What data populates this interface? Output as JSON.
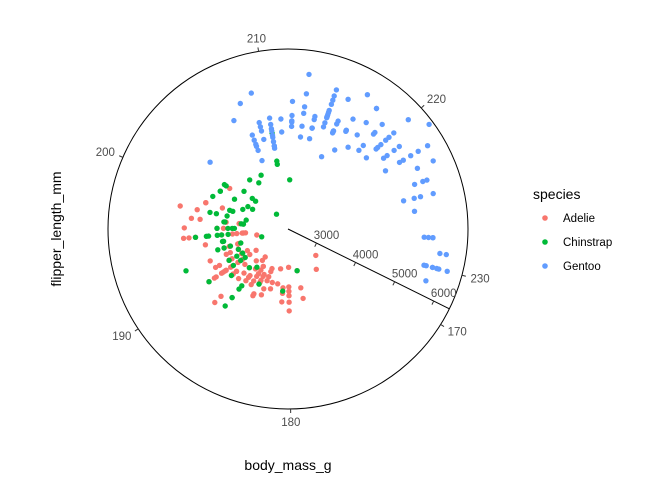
{
  "chart_data": {
    "type": "scatter",
    "coord": "polar",
    "x_variable": "flipper_length_mm",
    "y_variable": "body_mass_g",
    "xlabel": "body_mass_g",
    "ylabel": "flipper_length_mm",
    "theta_ticks": [
      170,
      180,
      190,
      200,
      210,
      220,
      230
    ],
    "r_ticks": [
      3000,
      4000,
      5000,
      6000
    ],
    "theta_range": [
      169,
      232
    ],
    "r_range": [
      2500,
      6400
    ],
    "grid": false,
    "legend_position": "right",
    "legend": {
      "title": "species",
      "entries": [
        {
          "label": "Adelie",
          "color": "#F8766D"
        },
        {
          "label": "Chinstrap",
          "color": "#00BA38"
        },
        {
          "label": "Gentoo",
          "color": "#619CFF"
        }
      ]
    },
    "series": [
      {
        "name": "Adelie",
        "color": "#F8766D",
        "points": [
          [
            181,
            3750
          ],
          [
            186,
            3800
          ],
          [
            195,
            3250
          ],
          [
            193,
            3450
          ],
          [
            190,
            3650
          ],
          [
            181,
            3625
          ],
          [
            195,
            4675
          ],
          [
            193,
            3475
          ],
          [
            190,
            4250
          ],
          [
            186,
            3300
          ],
          [
            180,
            3700
          ],
          [
            182,
            3200
          ],
          [
            191,
            3800
          ],
          [
            198,
            4400
          ],
          [
            185,
            3700
          ],
          [
            195,
            3450
          ],
          [
            197,
            4500
          ],
          [
            184,
            3325
          ],
          [
            194,
            4200
          ],
          [
            174,
            3400
          ],
          [
            180,
            3600
          ],
          [
            189,
            3800
          ],
          [
            185,
            3950
          ],
          [
            180,
            3800
          ],
          [
            187,
            3800
          ],
          [
            183,
            3550
          ],
          [
            187,
            3200
          ],
          [
            172,
            3150
          ],
          [
            180,
            3950
          ],
          [
            178,
            3250
          ],
          [
            178,
            3900
          ],
          [
            188,
            3300
          ],
          [
            184,
            3900
          ],
          [
            195,
            3325
          ],
          [
            180,
            4150
          ],
          [
            181,
            3950
          ],
          [
            182,
            3550
          ],
          [
            186,
            3300
          ],
          [
            188,
            4650
          ],
          [
            190,
            3150
          ],
          [
            196,
            3900
          ],
          [
            180,
            3150
          ],
          [
            186,
            3700
          ],
          [
            189,
            3550
          ],
          [
            190,
            3800
          ],
          [
            184,
            3750
          ],
          [
            195,
            4550
          ],
          [
            187,
            3700
          ],
          [
            192,
            3800
          ],
          [
            196,
            4650
          ],
          [
            193,
            3800
          ],
          [
            188,
            4450
          ],
          [
            197,
            3700
          ],
          [
            198,
            4800
          ],
          [
            178,
            3650
          ],
          [
            197,
            4300
          ],
          [
            195,
            3550
          ],
          [
            190,
            4050
          ],
          [
            195,
            4400
          ],
          [
            191,
            3475
          ],
          [
            184,
            3250
          ],
          [
            190,
            3650
          ],
          [
            185,
            4000
          ],
          [
            194,
            3000
          ],
          [
            190,
            3325
          ],
          [
            185,
            3650
          ],
          [
            192,
            4200
          ],
          [
            195,
            3800
          ],
          [
            185,
            3450
          ],
          [
            190,
            4100
          ],
          [
            199,
            4250
          ],
          [
            189,
            3900
          ],
          [
            188,
            3525
          ],
          [
            190,
            4300
          ],
          [
            195,
            3300
          ],
          [
            199,
            3850
          ],
          [
            187,
            3100
          ],
          [
            191,
            4150
          ],
          [
            189,
            3800
          ],
          [
            190,
            3850
          ],
          [
            188,
            3700
          ],
          [
            197,
            3400
          ],
          [
            190,
            4450
          ],
          [
            191,
            3325
          ],
          [
            186,
            3500
          ],
          [
            188,
            3875
          ],
          [
            191,
            3725
          ],
          [
            192,
            3700
          ],
          [
            186,
            3575
          ],
          [
            190,
            3975
          ],
          [
            185,
            3500
          ],
          [
            193,
            3675
          ],
          [
            187,
            3450
          ],
          [
            186,
            3400
          ],
          [
            199,
            4250
          ],
          [
            190,
            4000
          ],
          [
            191,
            3800
          ],
          [
            184,
            3450
          ],
          [
            183,
            3700
          ],
          [
            196,
            3750
          ],
          [
            184,
            3550
          ],
          [
            191,
            4050
          ],
          [
            185,
            3600
          ],
          [
            191,
            3450
          ],
          [
            193,
            3650
          ],
          [
            202,
            3900
          ],
          [
            189,
            3900
          ],
          [
            192,
            3500
          ],
          [
            187,
            3650
          ],
          [
            190,
            3525
          ]
        ]
      },
      {
        "name": "Chinstrap",
        "color": "#00BA38",
        "points": [
          [
            192,
            3500
          ],
          [
            196,
            3900
          ],
          [
            193,
            3650
          ],
          [
            188,
            3525
          ],
          [
            197,
            3725
          ],
          [
            198,
            3950
          ],
          [
            178,
            3250
          ],
          [
            197,
            3750
          ],
          [
            195,
            4150
          ],
          [
            198,
            3700
          ],
          [
            193,
            3800
          ],
          [
            194,
            3775
          ],
          [
            185,
            3700
          ],
          [
            201,
            4050
          ],
          [
            190,
            3575
          ],
          [
            201,
            4050
          ],
          [
            197,
            3300
          ],
          [
            181,
            3700
          ],
          [
            190,
            3450
          ],
          [
            195,
            4400
          ],
          [
            191,
            3600
          ],
          [
            187,
            3400
          ],
          [
            193,
            2900
          ],
          [
            195,
            3800
          ],
          [
            197,
            3300
          ],
          [
            200,
            4150
          ],
          [
            200,
            3400
          ],
          [
            191,
            3800
          ],
          [
            205,
            3700
          ],
          [
            187,
            4550
          ],
          [
            201,
            3200
          ],
          [
            187,
            4300
          ],
          [
            203,
            3350
          ],
          [
            195,
            4100
          ],
          [
            199,
            3600
          ],
          [
            195,
            3900
          ],
          [
            210,
            3850
          ],
          [
            192,
            4800
          ],
          [
            205,
            2700
          ],
          [
            210,
            4500
          ],
          [
            187,
            3950
          ],
          [
            196,
            3650
          ],
          [
            196,
            3550
          ],
          [
            196,
            3500
          ],
          [
            201,
            3675
          ],
          [
            190,
            4450
          ],
          [
            212,
            3400
          ],
          [
            187,
            4300
          ],
          [
            198,
            3250
          ],
          [
            199,
            3675
          ],
          [
            201,
            3325
          ],
          [
            193,
            3950
          ],
          [
            203,
            3600
          ],
          [
            187,
            4050
          ],
          [
            197,
            3350
          ],
          [
            191,
            3450
          ],
          [
            203,
            3250
          ],
          [
            202,
            4050
          ],
          [
            194,
            3800
          ],
          [
            206,
            3525
          ],
          [
            189,
            3950
          ],
          [
            195,
            3650
          ],
          [
            207,
            3650
          ],
          [
            202,
            4000
          ],
          [
            193,
            3400
          ],
          [
            210,
            3775
          ],
          [
            198,
            4100
          ],
          [
            190,
            3775
          ]
        ]
      },
      {
        "name": "Gentoo",
        "color": "#619CFF",
        "points": [
          [
            211,
            4500
          ],
          [
            230,
            5700
          ],
          [
            210,
            4450
          ],
          [
            218,
            5700
          ],
          [
            215,
            5400
          ],
          [
            210,
            4550
          ],
          [
            211,
            4800
          ],
          [
            219,
            5200
          ],
          [
            209,
            4400
          ],
          [
            215,
            5150
          ],
          [
            214,
            4650
          ],
          [
            216,
            5550
          ],
          [
            214,
            4650
          ],
          [
            213,
            5850
          ],
          [
            210,
            4200
          ],
          [
            217,
            5850
          ],
          [
            210,
            4150
          ],
          [
            221,
            6300
          ],
          [
            209,
            4800
          ],
          [
            222,
            5350
          ],
          [
            218,
            5700
          ],
          [
            215,
            5000
          ],
          [
            213,
            4400
          ],
          [
            215,
            5050
          ],
          [
            215,
            5000
          ],
          [
            215,
            5100
          ],
          [
            216,
            4100
          ],
          [
            215,
            5650
          ],
          [
            210,
            4600
          ],
          [
            220,
            5550
          ],
          [
            222,
            5250
          ],
          [
            209,
            4700
          ],
          [
            207,
            5050
          ],
          [
            230,
            6050
          ],
          [
            220,
            5150
          ],
          [
            220,
            5400
          ],
          [
            213,
            4950
          ],
          [
            219,
            5250
          ],
          [
            208,
            4350
          ],
          [
            208,
            5350
          ],
          [
            208,
            3950
          ],
          [
            225,
            5700
          ],
          [
            210,
            4300
          ],
          [
            216,
            4750
          ],
          [
            222,
            5550
          ],
          [
            217,
            4900
          ],
          [
            210,
            4200
          ],
          [
            225,
            5400
          ],
          [
            213,
            5100
          ],
          [
            215,
            5300
          ],
          [
            210,
            4850
          ],
          [
            220,
            5300
          ],
          [
            210,
            4400
          ],
          [
            225,
            5000
          ],
          [
            217,
            4900
          ],
          [
            220,
            5050
          ],
          [
            208,
            4300
          ],
          [
            220,
            5000
          ],
          [
            208,
            4450
          ],
          [
            224,
            5550
          ],
          [
            208,
            4200
          ],
          [
            221,
            5300
          ],
          [
            214,
            4400
          ],
          [
            231,
            5650
          ],
          [
            219,
            4700
          ],
          [
            230,
            5700
          ],
          [
            214,
            4650
          ],
          [
            229,
            5800
          ],
          [
            220,
            4700
          ],
          [
            223,
            5550
          ],
          [
            216,
            4750
          ],
          [
            221,
            5000
          ],
          [
            221,
            5100
          ],
          [
            217,
            5200
          ],
          [
            216,
            4700
          ],
          [
            230,
            5800
          ],
          [
            209,
            4600
          ],
          [
            220,
            6000
          ],
          [
            215,
            4750
          ],
          [
            223,
            5950
          ],
          [
            212,
            4625
          ],
          [
            221,
            5450
          ],
          [
            212,
            4725
          ],
          [
            224,
            5350
          ],
          [
            212,
            4750
          ],
          [
            228,
            5600
          ],
          [
            218,
            4600
          ],
          [
            218,
            5300
          ],
          [
            212,
            4875
          ],
          [
            230,
            5550
          ],
          [
            218,
            4950
          ],
          [
            228,
            5400
          ],
          [
            212,
            4750
          ],
          [
            224,
            5650
          ],
          [
            214,
            4850
          ],
          [
            226,
            5200
          ],
          [
            216,
            4925
          ],
          [
            222,
            4875
          ],
          [
            203,
            4625
          ],
          [
            225,
            5250
          ],
          [
            219,
            4850
          ],
          [
            228,
            5600
          ],
          [
            215,
            4975
          ],
          [
            228,
            5500
          ],
          [
            216,
            4725
          ],
          [
            215,
            5500
          ],
          [
            210,
            4700
          ],
          [
            219,
            5500
          ],
          [
            208,
            4575
          ],
          [
            209,
            5500
          ],
          [
            216,
            5000
          ],
          [
            229,
            5950
          ],
          [
            213,
            4650
          ],
          [
            230,
            5500
          ],
          [
            217,
            4375
          ],
          [
            230,
            5850
          ],
          [
            217,
            4875
          ],
          [
            222,
            6000
          ],
          [
            214,
            4925
          ],
          [
            215,
            4850
          ],
          [
            222,
            5750
          ],
          [
            212,
            5200
          ],
          [
            213,
            5400
          ]
        ]
      }
    ]
  }
}
